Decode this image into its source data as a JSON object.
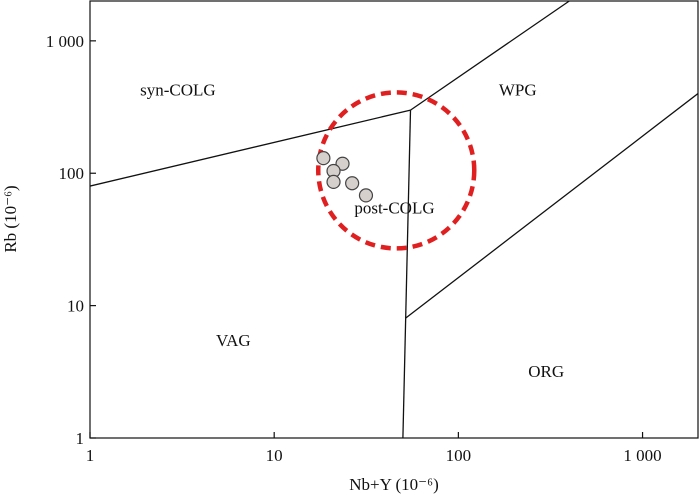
{
  "chart_data": {
    "type": "scatter",
    "xscale": "log",
    "yscale": "log",
    "xlim": [
      1,
      2000
    ],
    "ylim": [
      1,
      2000
    ],
    "xlabel": "Nb+Y (10⁻⁶)",
    "ylabel": "Rb (10⁻⁶)",
    "x_ticks": [
      {
        "value": 1,
        "label": "1"
      },
      {
        "value": 10,
        "label": "10"
      },
      {
        "value": 100,
        "label": "100"
      },
      {
        "value": 1000,
        "label": "1 000"
      }
    ],
    "y_ticks": [
      {
        "value": 1,
        "label": "1"
      },
      {
        "value": 10,
        "label": "10"
      },
      {
        "value": 100,
        "label": "100"
      },
      {
        "value": 1000,
        "label": "1 000"
      }
    ],
    "boundaries": [
      {
        "name": "syn-COLG/VAG",
        "points": [
          [
            1,
            80
          ],
          [
            55,
            300
          ]
        ]
      },
      {
        "name": "syn-COLG/WPG",
        "points": [
          [
            55,
            300
          ],
          [
            400,
            2000
          ]
        ]
      },
      {
        "name": "VAG/WPG",
        "points": [
          [
            55,
            300
          ],
          [
            50,
            1
          ]
        ]
      },
      {
        "name": "WPG/ORG",
        "points": [
          [
            51.5,
            8
          ],
          [
            2000,
            400
          ]
        ]
      }
    ],
    "regions": [
      {
        "label": "syn-COLG",
        "x": 3.0,
        "y": 430
      },
      {
        "label": "WPG",
        "x": 210,
        "y": 430
      },
      {
        "label": "post-COLG",
        "x": 45,
        "y": 55
      },
      {
        "label": "VAG",
        "x": 6.0,
        "y": 5.5
      },
      {
        "label": "ORG",
        "x": 300,
        "y": 3.2
      }
    ],
    "points": [
      {
        "x": 18.5,
        "y": 130
      },
      {
        "x": 23.5,
        "y": 118
      },
      {
        "x": 21,
        "y": 104
      },
      {
        "x": 21,
        "y": 86
      },
      {
        "x": 26.5,
        "y": 84
      },
      {
        "x": 31.5,
        "y": 68
      }
    ],
    "highlight_circle": {
      "center_x": 46,
      "center_y": 105,
      "color": "#e02020",
      "style": "dashed"
    },
    "colors": {
      "point_fill": "#d6d0cc",
      "point_stroke": "#444444",
      "line": "#111111"
    }
  }
}
